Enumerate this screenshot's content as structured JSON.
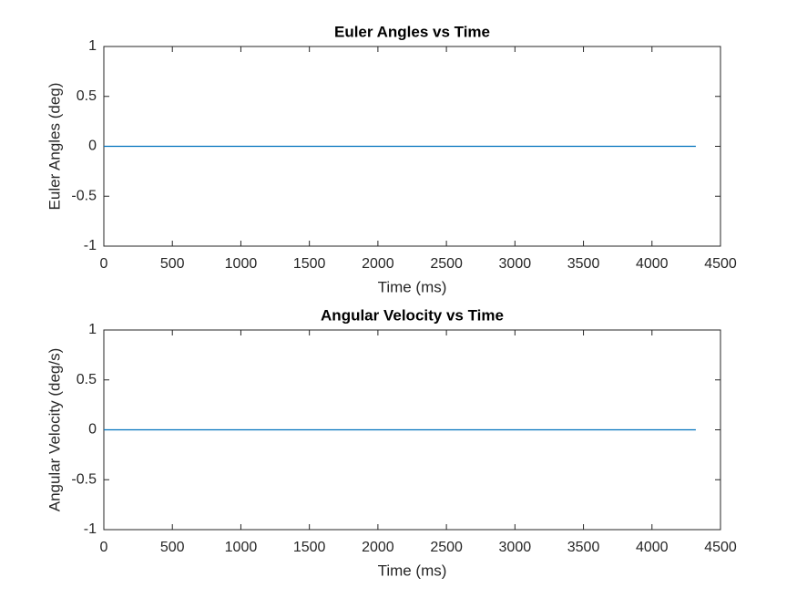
{
  "chart_data": [
    {
      "type": "line",
      "title": "Euler Angles vs Time",
      "x_label": "Time (ms)",
      "y_label": "Euler Angles (deg)",
      "x": [
        0,
        4320
      ],
      "values": [
        0,
        0
      ],
      "color": "#0072bd",
      "xlim": [
        0,
        4500
      ],
      "xticks": [
        0,
        500,
        1000,
        1500,
        2000,
        2500,
        3000,
        3500,
        4000,
        4500
      ],
      "ylim": [
        -1,
        1
      ],
      "yticks": [
        -1,
        -0.5,
        0,
        0.5,
        1
      ],
      "grid": false
    },
    {
      "type": "line",
      "title": "Angular Velocity vs Time",
      "x_label": "Time (ms)",
      "y_label": "Angular Velocity (deg/s)",
      "x": [
        0,
        4320
      ],
      "values": [
        0,
        0
      ],
      "color": "#0072bd",
      "xlim": [
        0,
        4500
      ],
      "xticks": [
        0,
        500,
        1000,
        1500,
        2000,
        2500,
        3000,
        3500,
        4000,
        4500
      ],
      "ylim": [
        -1,
        1
      ],
      "yticks": [
        -1,
        -0.5,
        0,
        0.5,
        1
      ],
      "grid": false
    }
  ]
}
